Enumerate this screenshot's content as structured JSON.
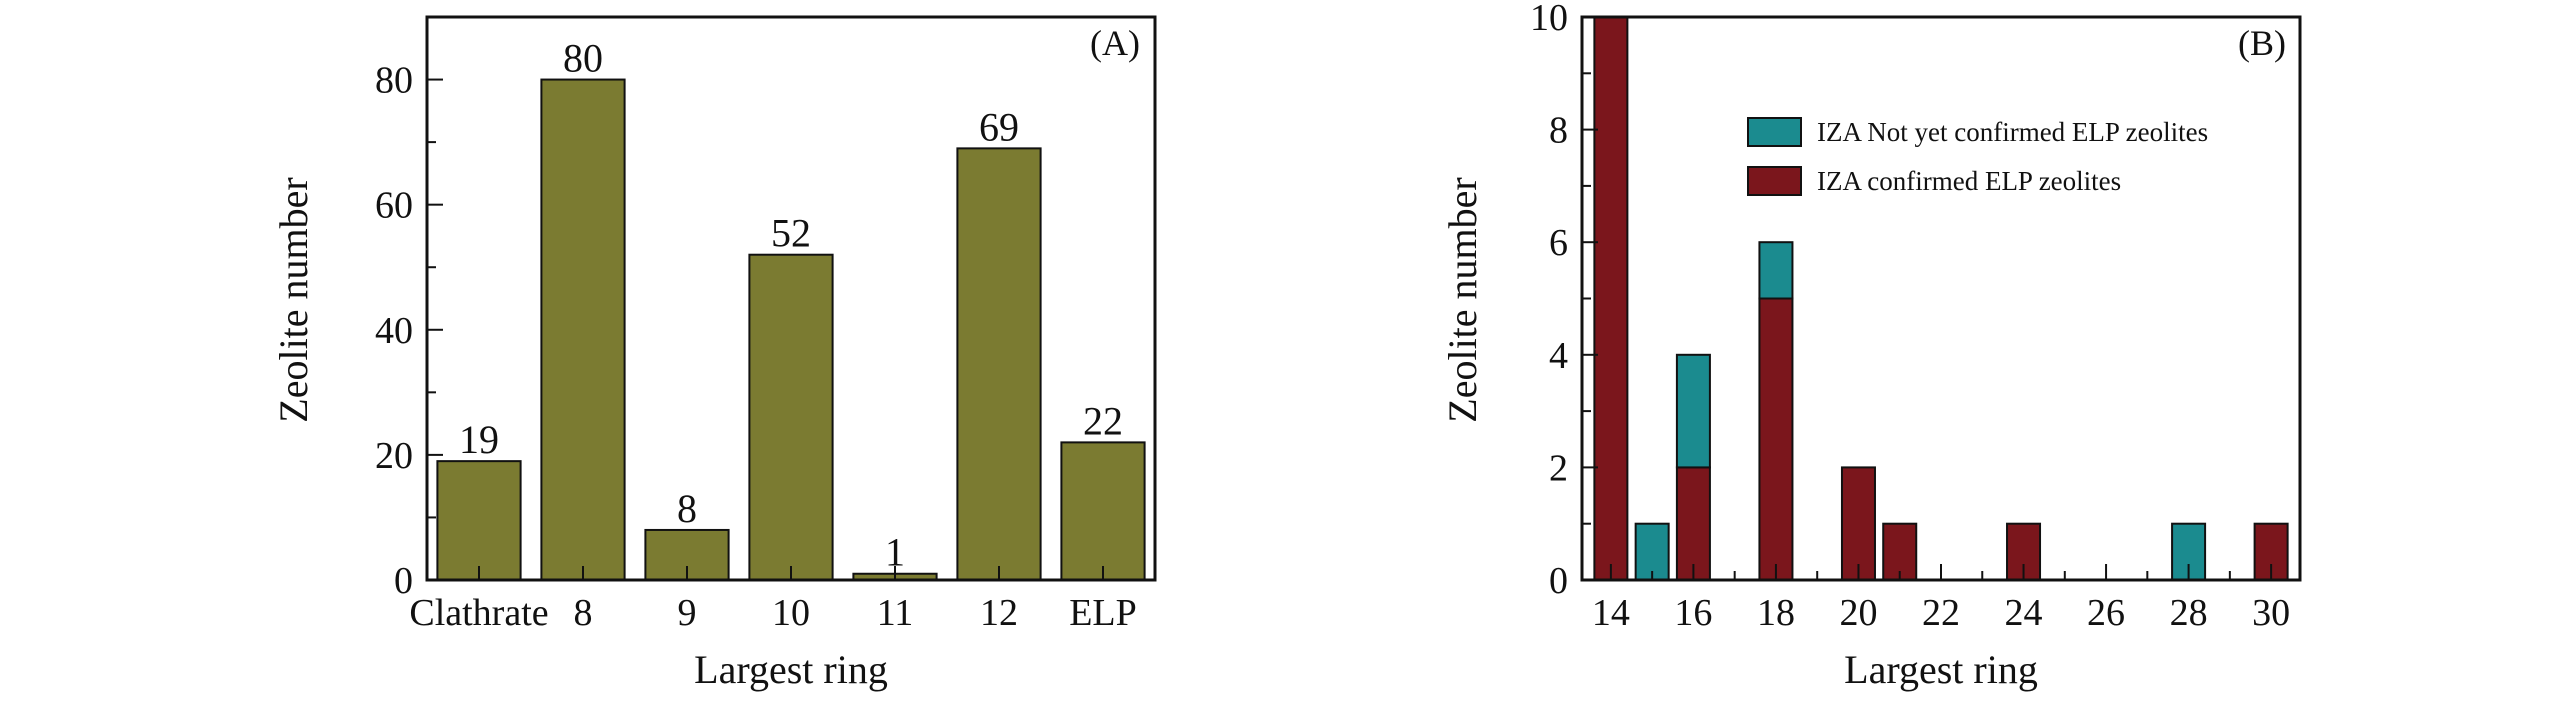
{
  "chart_data": [
    {
      "panel": "(A)",
      "type": "bar",
      "xlabel": "Largest ring",
      "ylabel": "Zeolite number",
      "categories": [
        "Clathrate",
        "8",
        "9",
        "10",
        "11",
        "12",
        "ELP"
      ],
      "values": [
        19,
        80,
        8,
        52,
        1,
        69,
        22
      ],
      "data_labels": [
        "19",
        "80",
        "8",
        "52",
        "1",
        "69",
        "22"
      ],
      "ylim": [
        0,
        90
      ],
      "yticks": [
        0,
        20,
        40,
        60,
        80
      ],
      "ytick_labels": [
        "0",
        "20",
        "40",
        "60",
        "80"
      ],
      "bar_color": "#7b7b31",
      "grid": false
    },
    {
      "panel": "(B)",
      "type": "bar",
      "stacked": true,
      "xlabel": "Largest ring",
      "ylabel": "Zeolite number",
      "x": [
        14,
        15,
        16,
        18,
        20,
        21,
        24,
        28,
        30
      ],
      "series": [
        {
          "name": "IZA confirmed ELP zeolites",
          "color": "#7b161c",
          "values": [
            10,
            0,
            2,
            5,
            2,
            1,
            1,
            0,
            1
          ]
        },
        {
          "name": "IZA Not yet confirmed ELP zeolites",
          "color": "#1b8b8f",
          "values": [
            0,
            1,
            2,
            1,
            0,
            0,
            0,
            1,
            0
          ]
        }
      ],
      "legend_order": [
        "IZA Not yet confirmed ELP zeolites",
        "IZA confirmed ELP zeolites"
      ],
      "legend_position": "top-right",
      "xlim": [
        13.3,
        30.7
      ],
      "ylim": [
        0,
        10
      ],
      "xticks": [
        14,
        16,
        18,
        20,
        22,
        24,
        26,
        28,
        30
      ],
      "xtick_labels": [
        "14",
        "16",
        "18",
        "20",
        "22",
        "24",
        "26",
        "28",
        "30"
      ],
      "yticks": [
        0,
        2,
        4,
        6,
        8,
        10
      ],
      "ytick_labels": [
        "0",
        "2",
        "4",
        "6",
        "8",
        "10"
      ],
      "grid": false
    }
  ]
}
